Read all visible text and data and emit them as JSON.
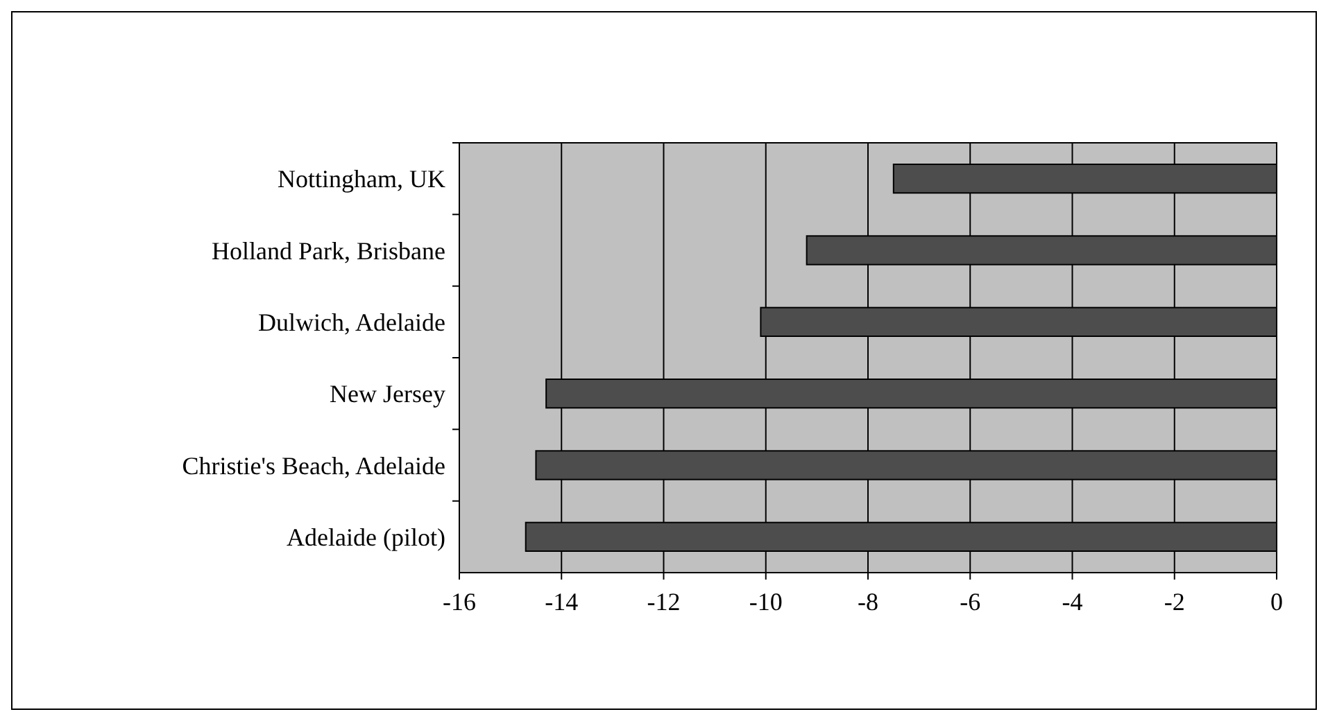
{
  "chart_data": {
    "type": "bar",
    "orientation": "horizontal",
    "categories": [
      "Nottingham, UK",
      "Holland Park, Brisbane",
      "Dulwich, Adelaide",
      "New Jersey",
      "Christie's Beach, Adelaide",
      "Adelaide (pilot)"
    ],
    "values": [
      -7.5,
      -9.2,
      -10.1,
      -14.3,
      -14.5,
      -14.7
    ],
    "color": "#4d4d4d",
    "xlim": [
      -16,
      0
    ],
    "xticks": [
      -16,
      -14,
      -12,
      -10,
      -8,
      -6,
      -4,
      -2,
      0
    ],
    "grid": "x"
  }
}
